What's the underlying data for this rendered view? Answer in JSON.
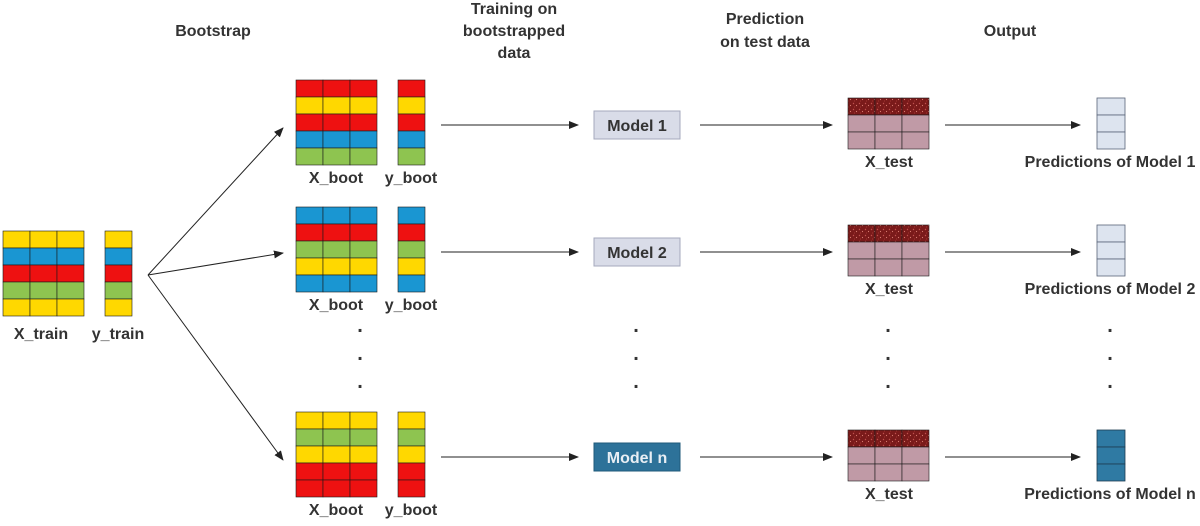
{
  "headers": {
    "bootstrap": "Bootstrap",
    "training": [
      "Training on",
      "bootstrapped",
      "data"
    ],
    "prediction": [
      "Prediction",
      "on test data"
    ],
    "output": "Output"
  },
  "labels": {
    "x_train": "X_train",
    "y_train": "y_train",
    "x_boot": "X_boot",
    "y_boot": "y_boot",
    "x_test": "X_test"
  },
  "colors": {
    "yellow": "#ffd800",
    "blue": "#1a96d2",
    "red": "#ee1111",
    "green": "#8ec450",
    "test_dark": "#7a1a1a",
    "test_pink": "#c09aa6",
    "pred_light": "#dde4ef",
    "pred_dark": "#2f7aa3",
    "model_light_fill": "#d9dce8",
    "model_light_border": "#a5a9bd",
    "model_dark_fill": "#2d7299",
    "model_dark_border": "#1f5a7a"
  },
  "train_data": {
    "x_rows": [
      "yellow",
      "blue",
      "red",
      "green",
      "yellow"
    ],
    "y_rows": [
      "yellow",
      "blue",
      "red",
      "green",
      "yellow"
    ]
  },
  "branches": [
    {
      "x_rows": [
        "red",
        "yellow",
        "red",
        "blue",
        "green"
      ],
      "y_rows": [
        "red",
        "yellow",
        "red",
        "blue",
        "green"
      ],
      "model": "Model 1",
      "model_style": "light",
      "prediction": "Predictions of Model 1",
      "pred_style": "light"
    },
    {
      "x_rows": [
        "blue",
        "red",
        "green",
        "yellow",
        "blue"
      ],
      "y_rows": [
        "blue",
        "red",
        "green",
        "yellow",
        "blue"
      ],
      "model": "Model 2",
      "model_style": "light",
      "prediction": "Predictions of Model 2",
      "pred_style": "light"
    },
    {
      "x_rows": [
        "yellow",
        "green",
        "yellow",
        "red",
        "red"
      ],
      "y_rows": [
        "yellow",
        "green",
        "yellow",
        "red",
        "red"
      ],
      "model": "Model n",
      "model_style": "dark",
      "prediction": "Predictions of Model n",
      "pred_style": "dark"
    }
  ],
  "ellipsis": "."
}
